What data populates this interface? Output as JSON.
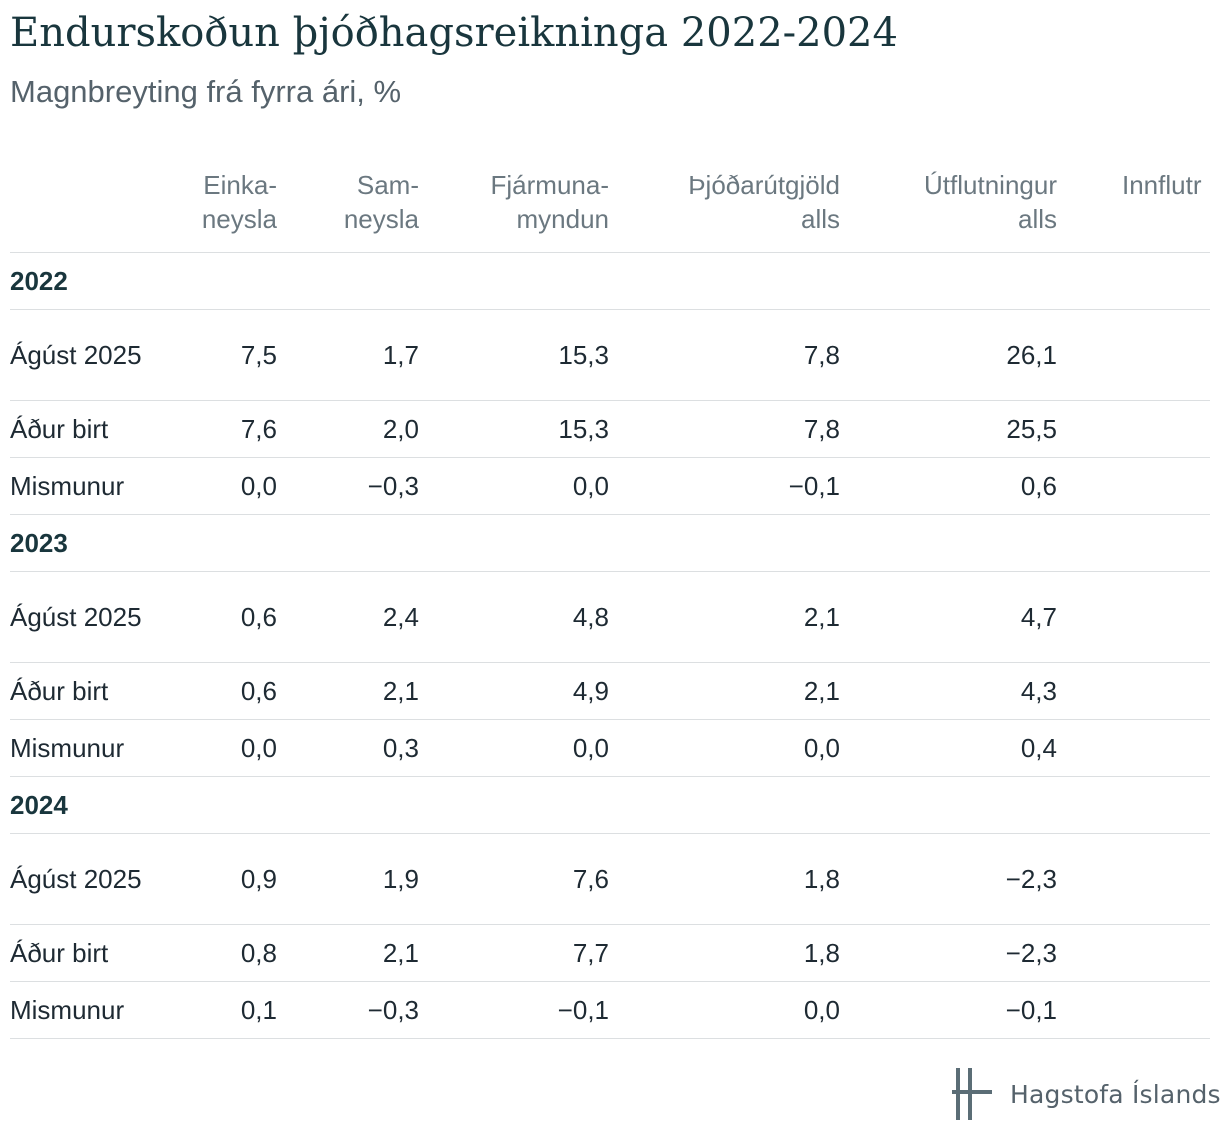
{
  "title": "Endurskoðun þjóðhagsreikninga 2022-2024",
  "subtitle": "Magnbreyting frá fyrra ári, %",
  "columns": [
    {
      "line1": "Einka-",
      "line2": "neysla"
    },
    {
      "line1": "Sam-",
      "line2": "neysla"
    },
    {
      "line1": "Fjármuna-",
      "line2": "myndun"
    },
    {
      "line1": "Þjóðarútgjöld",
      "line2": "alls"
    },
    {
      "line1": "Útflutningur",
      "line2": "alls"
    },
    {
      "line1": "Innflutr",
      "line2": ""
    }
  ],
  "groups": [
    {
      "year": "2022",
      "rows": [
        {
          "label": "Ágúst 2025",
          "values": [
            "7,5",
            "1,7",
            "15,3",
            "7,8",
            "26,1"
          ]
        },
        {
          "label": "Áður birt",
          "values": [
            "7,6",
            "2,0",
            "15,3",
            "7,8",
            "25,5"
          ]
        },
        {
          "label": "Mismunur",
          "values": [
            "0,0",
            "−0,3",
            "0,0",
            "−0,1",
            "0,6"
          ]
        }
      ]
    },
    {
      "year": "2023",
      "rows": [
        {
          "label": "Ágúst 2025",
          "values": [
            "0,6",
            "2,4",
            "4,8",
            "2,1",
            "4,7"
          ]
        },
        {
          "label": "Áður birt",
          "values": [
            "0,6",
            "2,1",
            "4,9",
            "2,1",
            "4,3"
          ]
        },
        {
          "label": "Mismunur",
          "values": [
            "0,0",
            "0,3",
            "0,0",
            "0,0",
            "0,4"
          ]
        }
      ]
    },
    {
      "year": "2024",
      "rows": [
        {
          "label": "Ágúst 2025",
          "values": [
            "0,9",
            "1,9",
            "7,6",
            "1,8",
            "−2,3"
          ]
        },
        {
          "label": "Áður birt",
          "values": [
            "0,8",
            "2,1",
            "7,7",
            "1,8",
            "−2,3"
          ]
        },
        {
          "label": "Mismunur",
          "values": [
            "0,1",
            "−0,3",
            "−0,1",
            "0,0",
            "−0,1"
          ]
        }
      ]
    }
  ],
  "logo": {
    "text": "Hagstofa Íslands",
    "icon": "hagstofa-logo-icon"
  },
  "chart_data": {
    "type": "table",
    "title": "Endurskoðun þjóðhagsreikninga 2022-2024",
    "subtitle": "Magnbreyting frá fyrra ári, %",
    "columns": [
      "Einkaneysla",
      "Samneysla",
      "Fjármunamyndun",
      "Þjóðarútgjöld alls",
      "Útflutningur alls"
    ],
    "rows": [
      {
        "year": "2022",
        "label": "Ágúst 2025",
        "values": [
          7.5,
          1.7,
          15.3,
          7.8,
          26.1
        ]
      },
      {
        "year": "2022",
        "label": "Áður birt",
        "values": [
          7.6,
          2.0,
          15.3,
          7.8,
          25.5
        ]
      },
      {
        "year": "2022",
        "label": "Mismunur",
        "values": [
          0.0,
          -0.3,
          0.0,
          -0.1,
          0.6
        ]
      },
      {
        "year": "2023",
        "label": "Ágúst 2025",
        "values": [
          0.6,
          2.4,
          4.8,
          2.1,
          4.7
        ]
      },
      {
        "year": "2023",
        "label": "Áður birt",
        "values": [
          0.6,
          2.1,
          4.9,
          2.1,
          4.3
        ]
      },
      {
        "year": "2023",
        "label": "Mismunur",
        "values": [
          0.0,
          0.3,
          0.0,
          0.0,
          0.4
        ]
      },
      {
        "year": "2024",
        "label": "Ágúst 2025",
        "values": [
          0.9,
          1.9,
          7.6,
          1.8,
          -2.3
        ]
      },
      {
        "year": "2024",
        "label": "Áður birt",
        "values": [
          0.8,
          2.1,
          7.7,
          1.8,
          -2.3
        ]
      },
      {
        "year": "2024",
        "label": "Mismunur",
        "values": [
          0.1,
          -0.3,
          -0.1,
          0.0,
          -0.1
        ]
      }
    ]
  }
}
